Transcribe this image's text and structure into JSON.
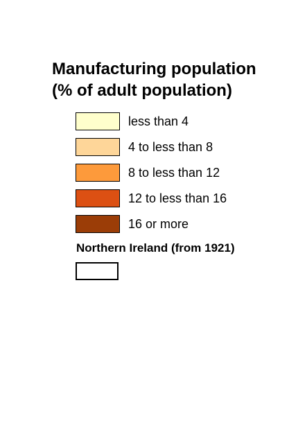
{
  "legend": {
    "title_line1": "Manufacturing population",
    "title_line2": "(% of adult population)",
    "items": [
      {
        "label": "less than 4",
        "color": "#ffffcc"
      },
      {
        "label": "4 to less than 8",
        "color": "#fed699"
      },
      {
        "label": "8 to less than 12",
        "color": "#fd9a3b"
      },
      {
        "label": "12 to less than 16",
        "color": "#dc5013"
      },
      {
        "label": "16 or more",
        "color": "#9b3d07"
      }
    ],
    "northern_ireland": {
      "label": "Northern Ireland (from 1921)",
      "color": "#ffffff"
    }
  }
}
